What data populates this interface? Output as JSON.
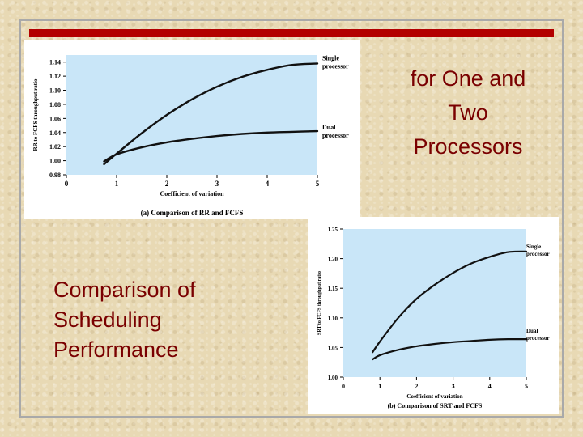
{
  "slide": {
    "top_title_lines": [
      "for One and",
      "Two",
      "Processors"
    ],
    "main_title_lines": [
      "Comparison of",
      "Scheduling",
      "Performance"
    ],
    "accent_color": "#b30000",
    "text_color": "#7a0000"
  },
  "chart_data": [
    {
      "type": "line",
      "caption": "(a) Comparison of RR and FCFS",
      "xlabel": "Coefficient of variation",
      "ylabel": "RR to FCFS throughput ratio",
      "xlim": [
        0,
        5
      ],
      "ylim": [
        0.98,
        1.15
      ],
      "xticks": [
        0,
        1,
        2,
        3,
        4,
        5
      ],
      "yticks": [
        0.98,
        1.0,
        1.02,
        1.04,
        1.06,
        1.08,
        1.1,
        1.12,
        1.14
      ],
      "ytick_labels": [
        "0.98",
        "1.00",
        "1.02",
        "1.04",
        "1.06",
        "1.08",
        "1.10",
        "1.12",
        "1.14"
      ],
      "plot_bg": "#c9e6f8",
      "series": [
        {
          "name": "Single processor",
          "name_lines": [
            "Single",
            "processor"
          ],
          "x": [
            0.75,
            1,
            1.5,
            2,
            2.5,
            3,
            3.5,
            4,
            4.5,
            5
          ],
          "y": [
            0.995,
            1.01,
            1.039,
            1.065,
            1.087,
            1.105,
            1.119,
            1.129,
            1.136,
            1.138
          ]
        },
        {
          "name": "Dual processor",
          "name_lines": [
            "Dual",
            "processor"
          ],
          "x": [
            0.75,
            1,
            1.5,
            2,
            2.5,
            3,
            3.5,
            4,
            4.5,
            5
          ],
          "y": [
            0.999,
            1.009,
            1.019,
            1.026,
            1.031,
            1.035,
            1.038,
            1.04,
            1.041,
            1.042
          ]
        }
      ]
    },
    {
      "type": "line",
      "caption": "(b) Comparison of SRT and FCFS",
      "xlabel": "Coefficient of variation",
      "ylabel": "SRT to FCFS throughput ratio",
      "xlim": [
        0,
        5
      ],
      "ylim": [
        1.0,
        1.25
      ],
      "xticks": [
        0,
        1,
        2,
        3,
        4,
        5
      ],
      "yticks": [
        1.0,
        1.05,
        1.1,
        1.15,
        1.2,
        1.25
      ],
      "ytick_labels": [
        "1.00",
        "1.05",
        "1.10",
        "1.15",
        "1.20",
        "1.25"
      ],
      "plot_bg": "#c9e6f8",
      "series": [
        {
          "name": "Single processor",
          "name_lines": [
            "Single",
            "processor"
          ],
          "x": [
            0.8,
            1,
            1.5,
            2,
            2.5,
            3,
            3.5,
            4,
            4.5,
            5
          ],
          "y": [
            1.042,
            1.06,
            1.1,
            1.132,
            1.156,
            1.176,
            1.192,
            1.203,
            1.211,
            1.212
          ]
        },
        {
          "name": "Dual processor",
          "name_lines": [
            "Dual",
            "processor"
          ],
          "x": [
            0.8,
            1,
            1.5,
            2,
            2.5,
            3,
            3.5,
            4,
            4.5,
            5
          ],
          "y": [
            1.03,
            1.037,
            1.046,
            1.052,
            1.056,
            1.059,
            1.061,
            1.063,
            1.064,
            1.064
          ]
        }
      ]
    }
  ]
}
